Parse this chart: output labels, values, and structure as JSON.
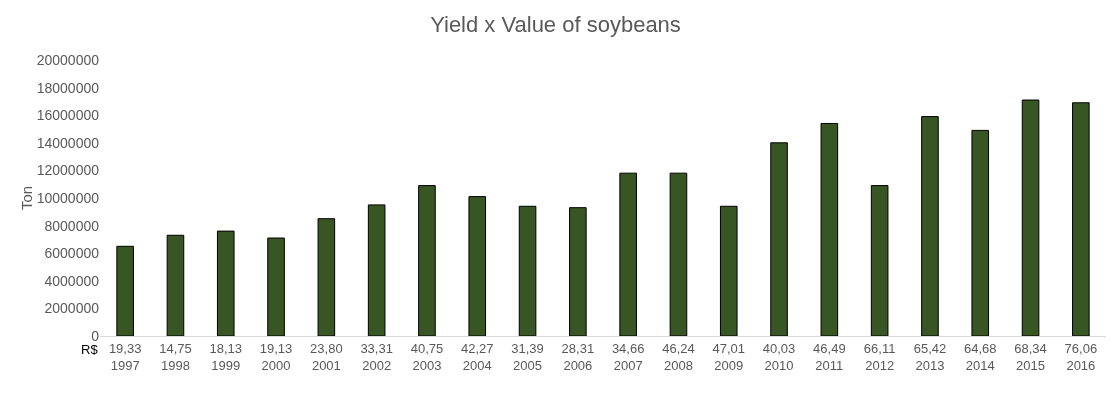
{
  "chart_data": {
    "type": "bar",
    "title": "Yield x Value of soybeans",
    "ylabel": "Ton",
    "categories": [
      "19,33\n1997",
      "14,75\n1998",
      "18,13\n1999",
      "19,13\n2000",
      "23,80\n2001",
      "33,31\n2002",
      "40,75\n2003",
      "42,27\n2004",
      "31,39\n2005",
      "28,31\n2006",
      "34,66\n2007",
      "46,24\n2008",
      "47,01\n2009",
      "40,03\n2010",
      "46,49\n2011",
      "66,11\n2012",
      "65,42\n2013",
      "64,68\n2014",
      "68,34\n2015",
      "76,06\n2016"
    ],
    "values": [
      6500000,
      7300000,
      7600000,
      7100000,
      8500000,
      9500000,
      10900000,
      10100000,
      9400000,
      9300000,
      11800000,
      11800000,
      9400000,
      14000000,
      15400000,
      10900000,
      15900000,
      14900000,
      17100000,
      16900000
    ],
    "color": "#375623",
    "annotations": [
      "R$"
    ],
    "ylim": [
      0,
      20000000
    ],
    "yticks": [
      0,
      2000000,
      4000000,
      6000000,
      8000000,
      10000000,
      12000000,
      14000000,
      16000000,
      18000000,
      20000000
    ],
    "grid": false
  }
}
